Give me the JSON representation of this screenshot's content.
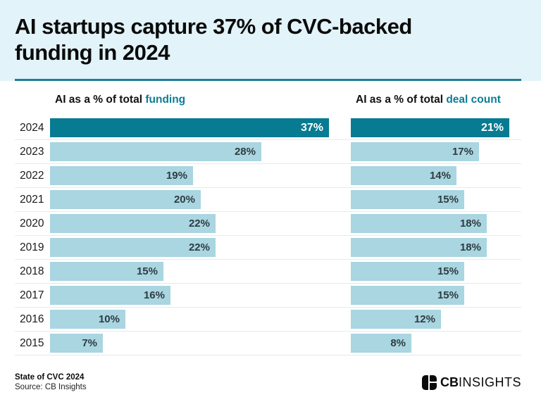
{
  "header": {
    "title_line1": "AI startups capture 37% of CVC-backed",
    "title_line2": "funding in 2024"
  },
  "columns": [
    {
      "prefix": "AI as a % of total ",
      "accent": "funding"
    },
    {
      "prefix": "AI as a % of total ",
      "accent": "deal count"
    }
  ],
  "chart_data": {
    "type": "bar",
    "orientation": "horizontal",
    "categories": [
      "2024",
      "2023",
      "2022",
      "2021",
      "2020",
      "2019",
      "2018",
      "2017",
      "2016",
      "2015"
    ],
    "series": [
      {
        "name": "AI as a % of total funding",
        "values": [
          37,
          28,
          19,
          20,
          22,
          22,
          15,
          16,
          10,
          7
        ]
      },
      {
        "name": "AI as a % of total deal count",
        "values": [
          21,
          17,
          14,
          15,
          18,
          18,
          15,
          15,
          12,
          8
        ]
      }
    ],
    "value_suffix": "%",
    "highlighted_category": "2024",
    "xlim": [
      0,
      40
    ],
    "grid": false,
    "legend": "column headers",
    "colors": {
      "highlight_bar": "#077b92",
      "bar": "#a9d6e0",
      "highlight_value_text": "#ffffff",
      "value_text": "#2f3b42",
      "accent_text": "#0c7d96",
      "header_background": "#e2f3f9",
      "divider": "#1f7e97"
    }
  },
  "footer": {
    "report": "State of CVC 2024",
    "source": "Source: CB Insights",
    "logo_cb": "CB",
    "logo_insights": "INSIGHTS"
  }
}
